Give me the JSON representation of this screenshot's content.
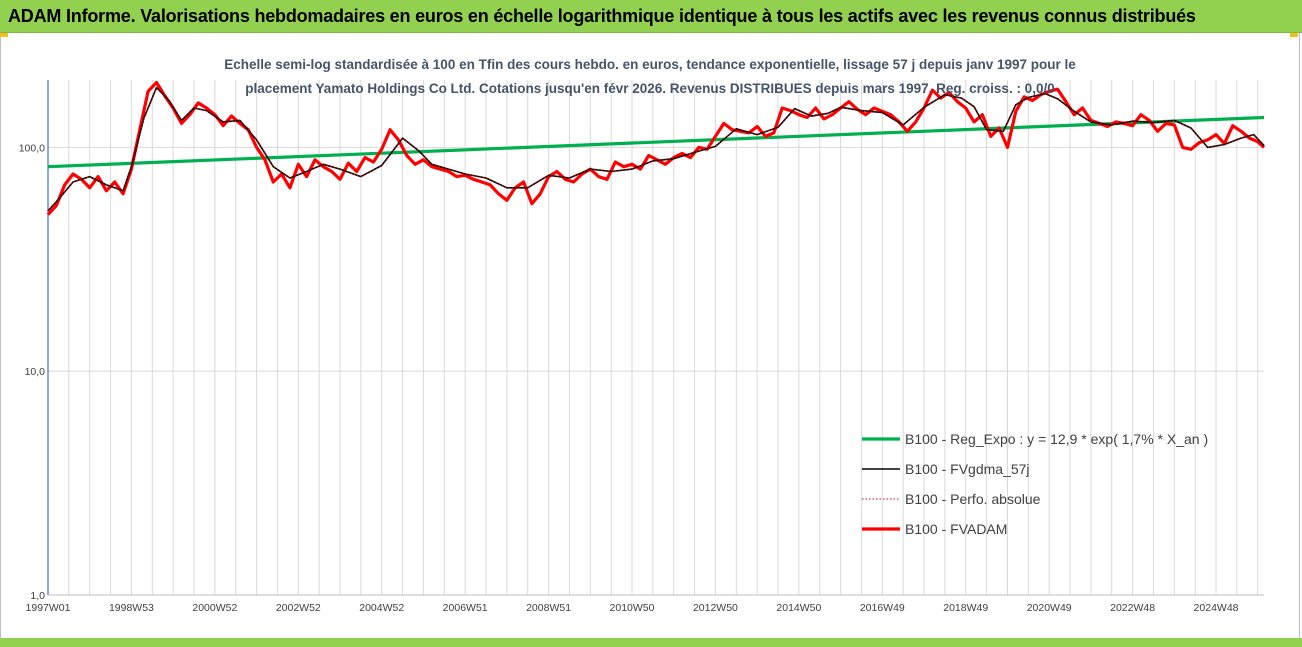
{
  "header": {
    "title": "ADAM Informe. Valorisations hebdomadaires en euros en échelle logarithmique identique à tous les actifs avec les revenus connus distribués"
  },
  "chart_data": {
    "type": "line",
    "title_lines": [
      "Echelle semi-log standardisée à 100 en Tfin des cours hebdo. en euros, tendance exponentielle, lissage 57 j depuis janv 1997 pour le",
      "placement Yamato Holdings Co Ltd. Cotations jusqu'en févr 2026. Revenus DISTRIBUES depuis mars 1997. Reg. croiss. : 0,0/0"
    ],
    "y_scale": "log",
    "ylim": [
      1,
      200
    ],
    "y_ticks": [
      {
        "value": 1,
        "label": "1,0"
      },
      {
        "value": 10,
        "label": "10,0"
      },
      {
        "value": 100,
        "label": "100,0"
      }
    ],
    "xlim": [
      1997.0,
      2026.15
    ],
    "x_ticks": [
      {
        "value": 1997.0,
        "label": "1997W01"
      },
      {
        "value": 1999.0,
        "label": "1998W53"
      },
      {
        "value": 2001.0,
        "label": "2000W52"
      },
      {
        "value": 2003.0,
        "label": "2002W52"
      },
      {
        "value": 2005.0,
        "label": "2004W52"
      },
      {
        "value": 2007.0,
        "label": "2006W51"
      },
      {
        "value": 2009.0,
        "label": "2008W51"
      },
      {
        "value": 2011.0,
        "label": "2010W50"
      },
      {
        "value": 2013.0,
        "label": "2012W50"
      },
      {
        "value": 2015.0,
        "label": "2014W50"
      },
      {
        "value": 2017.0,
        "label": "2016W49"
      },
      {
        "value": 2019.0,
        "label": "2018W49"
      },
      {
        "value": 2021.0,
        "label": "2020W49"
      },
      {
        "value": 2023.0,
        "label": "2022W48"
      },
      {
        "value": 2025.0,
        "label": "2024W48"
      }
    ],
    "grid": "vertical every 6 months",
    "legend_position": "lower-right",
    "series": [
      {
        "name": "B100 - Reg_Expo : y = 12,9 * exp( 1,7% *  X_an )",
        "color": "#00b050",
        "style": "solid-thick",
        "x": [
          1997.0,
          2026.15
        ],
        "y": [
          82,
          136
        ]
      },
      {
        "name": "B100 - FVgdma_57j",
        "color": "#000000",
        "style": "solid",
        "x": [
          1997.0,
          1997.3,
          1997.6,
          1998.0,
          1998.4,
          1998.8,
          1999.0,
          1999.3,
          1999.6,
          1999.9,
          2000.2,
          2000.5,
          2000.8,
          2001.2,
          2001.6,
          2002.0,
          2002.4,
          2002.8,
          2003.2,
          2003.6,
          2004.0,
          2004.5,
          2005.0,
          2005.5,
          2005.9,
          2006.2,
          2006.6,
          2007.0,
          2007.5,
          2008.0,
          2008.5,
          2009.0,
          2009.5,
          2010.0,
          2010.5,
          2011.0,
          2011.5,
          2012.0,
          2012.5,
          2013.0,
          2013.5,
          2014.0,
          2014.5,
          2014.9,
          2015.3,
          2015.7,
          2016.0,
          2016.5,
          2017.0,
          2017.5,
          2018.0,
          2018.5,
          2018.9,
          2019.2,
          2019.5,
          2019.9,
          2020.2,
          2020.5,
          2020.9,
          2021.2,
          2021.6,
          2022.0,
          2022.5,
          2023.0,
          2023.5,
          2024.0,
          2024.4,
          2024.8,
          2025.2,
          2025.6,
          2025.9,
          2026.15
        ],
        "y": [
          52,
          60,
          70,
          74,
          68,
          64,
          82,
          135,
          185,
          162,
          132,
          150,
          146,
          130,
          132,
          108,
          82,
          73,
          78,
          84,
          80,
          74,
          83,
          110,
          96,
          84,
          80,
          76,
          73,
          66,
          66,
          75,
          73,
          80,
          78,
          80,
          87,
          89,
          95,
          101,
          121,
          114,
          123,
          149,
          138,
          142,
          151,
          146,
          143,
          126,
          151,
          172,
          166,
          152,
          120,
          118,
          155,
          167,
          174,
          165,
          145,
          130,
          126,
          131,
          129,
          132,
          122,
          100,
          103,
          110,
          114,
          102
        ]
      },
      {
        "name": "B100 - Perfo. absolue",
        "color": "#c00000",
        "style": "dotted",
        "x": [
          1997.0,
          1997.3,
          1997.6,
          1998.0,
          1998.4,
          1998.8,
          1999.0,
          1999.3,
          1999.6,
          1999.9,
          2000.2,
          2000.5,
          2000.8,
          2001.2,
          2001.6,
          2002.0,
          2002.4,
          2002.8,
          2003.2,
          2003.6,
          2004.0,
          2004.5,
          2005.0,
          2005.5,
          2005.9,
          2006.2,
          2006.6,
          2007.0,
          2007.5,
          2008.0,
          2008.5,
          2009.0,
          2009.5,
          2010.0,
          2010.5,
          2011.0,
          2011.5,
          2012.0,
          2012.5,
          2013.0,
          2013.5,
          2014.0,
          2014.5,
          2014.9,
          2015.3,
          2015.7,
          2016.0,
          2016.5,
          2017.0,
          2017.5,
          2018.0,
          2018.5,
          2018.9,
          2019.2,
          2019.5,
          2019.9,
          2020.2,
          2020.5,
          2020.9,
          2021.2,
          2021.6,
          2022.0,
          2022.5,
          2023.0,
          2023.5,
          2024.0,
          2024.4,
          2024.8,
          2025.2,
          2025.6,
          2025.9,
          2026.15
        ],
        "y": [
          52,
          60,
          70,
          74,
          68,
          64,
          82,
          135,
          185,
          162,
          132,
          150,
          146,
          130,
          132,
          108,
          82,
          73,
          78,
          84,
          80,
          74,
          83,
          110,
          96,
          84,
          80,
          76,
          73,
          66,
          66,
          75,
          73,
          80,
          78,
          80,
          87,
          89,
          95,
          101,
          121,
          114,
          123,
          149,
          138,
          142,
          151,
          146,
          143,
          126,
          151,
          172,
          166,
          152,
          120,
          118,
          155,
          167,
          174,
          165,
          145,
          130,
          126,
          131,
          129,
          132,
          122,
          100,
          103,
          110,
          114,
          102
        ]
      },
      {
        "name": "B100 - FVADAM",
        "color": "#ff0000",
        "style": "solid-thick",
        "x": [
          1997.0,
          1997.2,
          1997.4,
          1997.6,
          1997.8,
          1998.0,
          1998.2,
          1998.4,
          1998.6,
          1998.8,
          1999.0,
          1999.2,
          1999.4,
          1999.6,
          1999.8,
          2000.0,
          2000.2,
          2000.4,
          2000.6,
          2000.8,
          2001.0,
          2001.2,
          2001.4,
          2001.6,
          2001.8,
          2002.0,
          2002.2,
          2002.4,
          2002.6,
          2002.8,
          2003.0,
          2003.2,
          2003.4,
          2003.6,
          2003.8,
          2004.0,
          2004.2,
          2004.4,
          2004.6,
          2004.8,
          2005.0,
          2005.2,
          2005.4,
          2005.6,
          2005.8,
          2006.0,
          2006.2,
          2006.4,
          2006.6,
          2006.8,
          2007.0,
          2007.2,
          2007.4,
          2007.6,
          2007.8,
          2008.0,
          2008.2,
          2008.4,
          2008.6,
          2008.8,
          2009.0,
          2009.2,
          2009.4,
          2009.6,
          2009.8,
          2010.0,
          2010.2,
          2010.4,
          2010.6,
          2010.8,
          2011.0,
          2011.2,
          2011.4,
          2011.6,
          2011.8,
          2012.0,
          2012.2,
          2012.4,
          2012.6,
          2012.8,
          2013.0,
          2013.2,
          2013.4,
          2013.6,
          2013.8,
          2014.0,
          2014.2,
          2014.4,
          2014.6,
          2014.8,
          2015.0,
          2015.2,
          2015.4,
          2015.6,
          2015.8,
          2016.0,
          2016.2,
          2016.4,
          2016.6,
          2016.8,
          2017.0,
          2017.2,
          2017.4,
          2017.6,
          2017.8,
          2018.0,
          2018.2,
          2018.4,
          2018.6,
          2018.8,
          2019.0,
          2019.2,
          2019.4,
          2019.6,
          2019.8,
          2020.0,
          2020.2,
          2020.4,
          2020.6,
          2020.8,
          2021.0,
          2021.2,
          2021.4,
          2021.6,
          2021.8,
          2022.0,
          2022.2,
          2022.4,
          2022.6,
          2022.8,
          2023.0,
          2023.2,
          2023.4,
          2023.6,
          2023.8,
          2024.0,
          2024.2,
          2024.4,
          2024.6,
          2024.8,
          2025.0,
          2025.2,
          2025.4,
          2025.6,
          2025.8,
          2026.0,
          2026.15
        ],
        "y": [
          50,
          55,
          68,
          76,
          72,
          66,
          74,
          64,
          70,
          62,
          80,
          120,
          178,
          195,
          170,
          150,
          128,
          140,
          158,
          150,
          140,
          125,
          138,
          128,
          120,
          100,
          88,
          70,
          76,
          66,
          84,
          74,
          88,
          82,
          78,
          72,
          85,
          78,
          90,
          86,
          98,
          120,
          108,
          92,
          84,
          88,
          82,
          80,
          78,
          74,
          75,
          72,
          70,
          68,
          62,
          58,
          66,
          70,
          56,
          62,
          74,
          78,
          72,
          70,
          76,
          80,
          74,
          72,
          86,
          82,
          84,
          80,
          92,
          88,
          84,
          90,
          94,
          90,
          100,
          98,
          112,
          128,
          120,
          118,
          116,
          124,
          112,
          116,
          150,
          146,
          140,
          136,
          150,
          134,
          140,
          150,
          160,
          148,
          140,
          150,
          145,
          140,
          130,
          118,
          130,
          150,
          180,
          166,
          176,
          160,
          150,
          130,
          140,
          112,
          122,
          100,
          145,
          168,
          162,
          172,
          178,
          182,
          160,
          140,
          150,
          132,
          128,
          124,
          130,
          128,
          125,
          140,
          132,
          118,
          128,
          126,
          100,
          98,
          105,
          108,
          114,
          104,
          125,
          118,
          110,
          106,
          100
        ]
      }
    ]
  }
}
